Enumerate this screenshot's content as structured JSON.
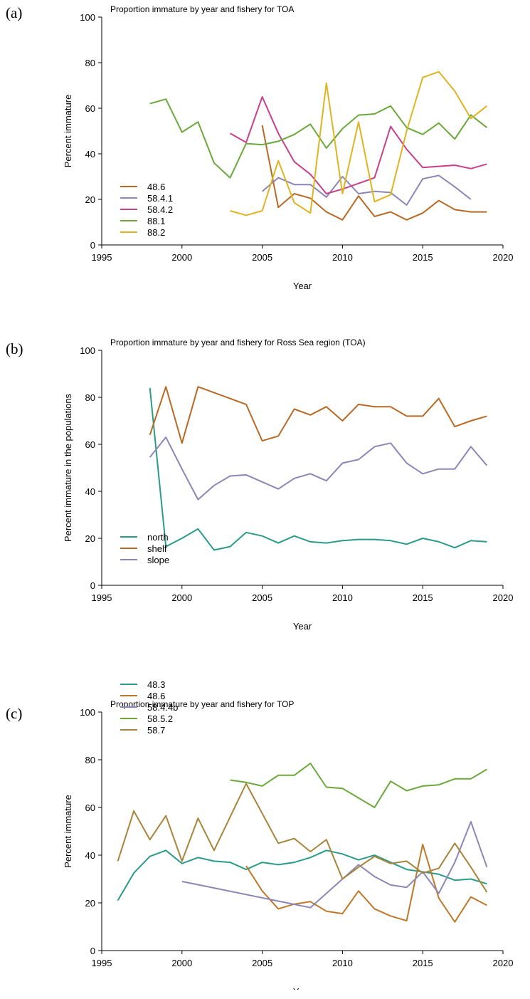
{
  "chart_data": [
    {
      "panel_label": "(a)",
      "type": "line",
      "title": "Proportion immature by year and fishery for TOA",
      "xlabel": "Year",
      "ylabel": "Percent immature",
      "xlim": [
        1995,
        2020
      ],
      "ylim": [
        0,
        100
      ],
      "xticks": [
        1995,
        2000,
        2005,
        2010,
        2015,
        2020
      ],
      "yticks": [
        0,
        20,
        40,
        60,
        80,
        100
      ],
      "grid": false,
      "legend": "bottom-left",
      "series": [
        {
          "name": "48.6",
          "color": "#b86a25",
          "x": [
            2005,
            2006,
            2007,
            2008,
            2009,
            2010,
            2011,
            2012,
            2013,
            2014,
            2015,
            2016,
            2017,
            2018,
            2019
          ],
          "y": [
            52.5,
            16.5,
            22.5,
            20.5,
            14.5,
            11,
            21.5,
            12.5,
            14.5,
            11,
            14,
            19.5,
            15.5,
            14.5,
            14.5
          ]
        },
        {
          "name": "58.4.1",
          "color": "#8c86b8",
          "x": [
            2005,
            2006,
            2007,
            2008,
            2009,
            2010,
            2011,
            2012,
            2013,
            2014,
            2015,
            2016,
            2017,
            2018
          ],
          "y": [
            23.5,
            29.5,
            26.5,
            26.5,
            21,
            30,
            22.5,
            23.5,
            23,
            17.5,
            29,
            30.5,
            25.5,
            20
          ]
        },
        {
          "name": "58.4.2",
          "color": "#c8408a",
          "x": [
            2003,
            2004,
            2005,
            2006,
            2007,
            2008,
            2009,
            2010,
            2011,
            2012,
            2013,
            2014,
            2015,
            2016,
            2017,
            2018,
            2019
          ],
          "y": [
            49,
            45,
            65,
            49,
            36.5,
            31,
            22.5,
            24.5,
            27,
            29.5,
            52,
            42,
            34,
            34.5,
            35,
            33.5,
            35.5
          ]
        },
        {
          "name": "88.1",
          "color": "#6aa83a",
          "x": [
            1998,
            1999,
            2000,
            2001,
            2002,
            2003,
            2004,
            2005,
            2006,
            2007,
            2008,
            2009,
            2010,
            2011,
            2012,
            2013,
            2014,
            2015,
            2016,
            2017,
            2018,
            2019
          ],
          "y": [
            62,
            64,
            49.5,
            54,
            36,
            29.5,
            44.5,
            44,
            45.5,
            48.5,
            53,
            42.5,
            51,
            57,
            57.5,
            61,
            51.5,
            48.5,
            53.5,
            46.5,
            57,
            51.5
          ]
        },
        {
          "name": "88.2",
          "color": "#e0b420",
          "x": [
            2003,
            2004,
            2005,
            2006,
            2007,
            2008,
            2009,
            2010,
            2011,
            2012,
            2013,
            2014,
            2015,
            2016,
            2017,
            2018,
            2019
          ],
          "y": [
            15,
            13,
            15,
            37,
            18.5,
            14,
            71,
            22.5,
            54,
            19,
            22,
            50,
            73.5,
            76,
            67.5,
            55.5,
            61
          ]
        }
      ]
    },
    {
      "panel_label": "(b)",
      "type": "line",
      "title": "Proportion immature by year and fishery for Ross Sea region (TOA)",
      "xlabel": "Year",
      "ylabel": "Percent immature in the populations",
      "xlim": [
        1995,
        2020
      ],
      "ylim": [
        0,
        100
      ],
      "xticks": [
        1995,
        2000,
        2005,
        2010,
        2015,
        2020
      ],
      "yticks": [
        0,
        20,
        40,
        60,
        80,
        100
      ],
      "grid": false,
      "legend": "bottom-left",
      "series": [
        {
          "name": "north",
          "color": "#2a9b8a",
          "x": [
            1998,
            1999,
            2000,
            2001,
            2002,
            2003,
            2004,
            2005,
            2006,
            2007,
            2008,
            2009,
            2010,
            2011,
            2012,
            2013,
            2014,
            2015,
            2016,
            2017,
            2018,
            2019
          ],
          "y": [
            84,
            16.5,
            20,
            24,
            15,
            16.5,
            22.5,
            21,
            18,
            21,
            18.5,
            18,
            19,
            19.5,
            19.5,
            19,
            17.5,
            20,
            18.5,
            16,
            19,
            18.5
          ]
        },
        {
          "name": "shelf",
          "color": "#b86a25",
          "x": [
            1998,
            1999,
            2000,
            2001,
            2004,
            2005,
            2006,
            2007,
            2008,
            2009,
            2010,
            2011,
            2012,
            2013,
            2014,
            2015,
            2016,
            2017,
            2018,
            2019
          ],
          "y": [
            64,
            84.5,
            60.5,
            84.5,
            77,
            61.5,
            63.5,
            75,
            72.5,
            76,
            70,
            77,
            76,
            76,
            72,
            72,
            79.5,
            67.5,
            70,
            72
          ]
        },
        {
          "name": "slope",
          "color": "#8c86b8",
          "x": [
            1998,
            1999,
            2000,
            2001,
            2002,
            2003,
            2004,
            2005,
            2006,
            2007,
            2008,
            2009,
            2010,
            2011,
            2012,
            2013,
            2014,
            2015,
            2016,
            2017,
            2018,
            2019
          ],
          "y": [
            54.5,
            63,
            49.5,
            36.5,
            42.5,
            46.5,
            47,
            44,
            41,
            45.5,
            47.5,
            44.5,
            52,
            53.5,
            59,
            60.5,
            52,
            47.5,
            49.5,
            49.5,
            59,
            51
          ]
        }
      ]
    },
    {
      "panel_label": "(c)",
      "type": "line",
      "title": "Proportion immature by year and fishery for TOP",
      "xlabel": "Year",
      "ylabel": "Percent immature",
      "xlim": [
        1995,
        2020
      ],
      "ylim": [
        0,
        100
      ],
      "xticks": [
        1995,
        2000,
        2005,
        2010,
        2015,
        2020
      ],
      "yticks": [
        0,
        20,
        40,
        60,
        80,
        100
      ],
      "grid": false,
      "legend": "top-left",
      "series": [
        {
          "name": "48.3",
          "color": "#2a9b8a",
          "x": [
            1996,
            1997,
            1998,
            1999,
            2000,
            2001,
            2002,
            2003,
            2004,
            2005,
            2006,
            2007,
            2008,
            2009,
            2010,
            2011,
            2012,
            2013,
            2014,
            2015,
            2016,
            2017,
            2018,
            2019
          ],
          "y": [
            21,
            32.5,
            39.5,
            42,
            36.5,
            39,
            37.5,
            37,
            34,
            37,
            36,
            37,
            39,
            42,
            40.5,
            38,
            40,
            37,
            34,
            33,
            32,
            29.5,
            30,
            28
          ]
        },
        {
          "name": "48.6",
          "color": "#c07828",
          "x": [
            2004,
            2005,
            2006,
            2007,
            2008,
            2009,
            2010,
            2011,
            2012,
            2013,
            2014,
            2015,
            2016,
            2017,
            2018,
            2019
          ],
          "y": [
            35.5,
            25,
            17.5,
            19.5,
            20.5,
            16.5,
            15.5,
            25,
            17.5,
            14.5,
            12.5,
            44.5,
            22,
            12,
            22.5,
            19
          ]
        },
        {
          "name": "58.4.4b",
          "color": "#8c86b8",
          "x": [
            2000,
            2008,
            2011,
            2012,
            2013,
            2014,
            2015,
            2016,
            2017,
            2018,
            2019
          ],
          "y": [
            29,
            18,
            36,
            31,
            27.5,
            26.5,
            33,
            24,
            37,
            54,
            35
          ]
        },
        {
          "name": "58.5.2",
          "color": "#6aa83a",
          "x": [
            2003,
            2004,
            2005,
            2006,
            2007,
            2008,
            2009,
            2010,
            2011,
            2012,
            2013,
            2014,
            2015,
            2016,
            2017,
            2018,
            2019
          ],
          "y": [
            71.5,
            70.5,
            69,
            73.5,
            73.5,
            78.5,
            68.5,
            68,
            64,
            60,
            71,
            67,
            69,
            69.5,
            72,
            72,
            76
          ]
        },
        {
          "name": "58.7",
          "color": "#a8843a",
          "x": [
            1996,
            1997,
            1998,
            1999,
            2000,
            2001,
            2002,
            2004,
            2005,
            2006,
            2007,
            2008,
            2009,
            2010,
            2011,
            2012,
            2013,
            2014,
            2015,
            2016,
            2017,
            2018,
            2019
          ],
          "y": [
            37.5,
            58.5,
            46.5,
            56.5,
            37.5,
            55.5,
            42,
            70,
            57.5,
            45,
            47,
            41.5,
            46.5,
            30,
            35,
            39.5,
            36.5,
            37.5,
            32.5,
            34.5,
            45,
            35,
            24.5
          ]
        }
      ]
    }
  ]
}
